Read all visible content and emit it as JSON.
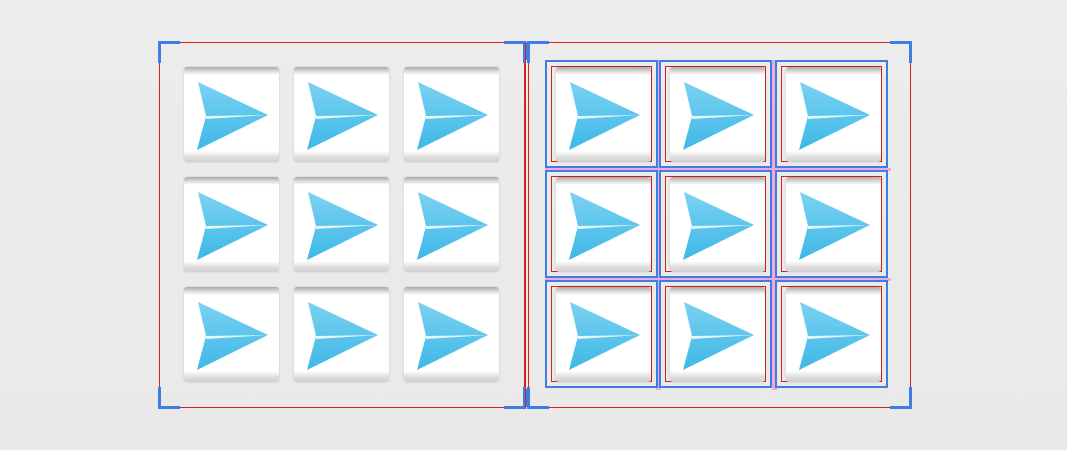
{
  "canvas": {
    "background": "#ebebeb",
    "colors": {
      "outline_red": "#d62020",
      "selection_blue": "#3d7ee6",
      "gap_pink": "#f5a8d4",
      "arrow_light": "#7cd2f2",
      "arrow_dark": "#3db8e6"
    }
  },
  "left_grid": {
    "rows": 3,
    "columns": 3,
    "icon": "send-arrow-icon"
  },
  "right_grid": {
    "rows": 3,
    "columns": 3,
    "icon": "send-arrow-icon",
    "selected": true
  }
}
